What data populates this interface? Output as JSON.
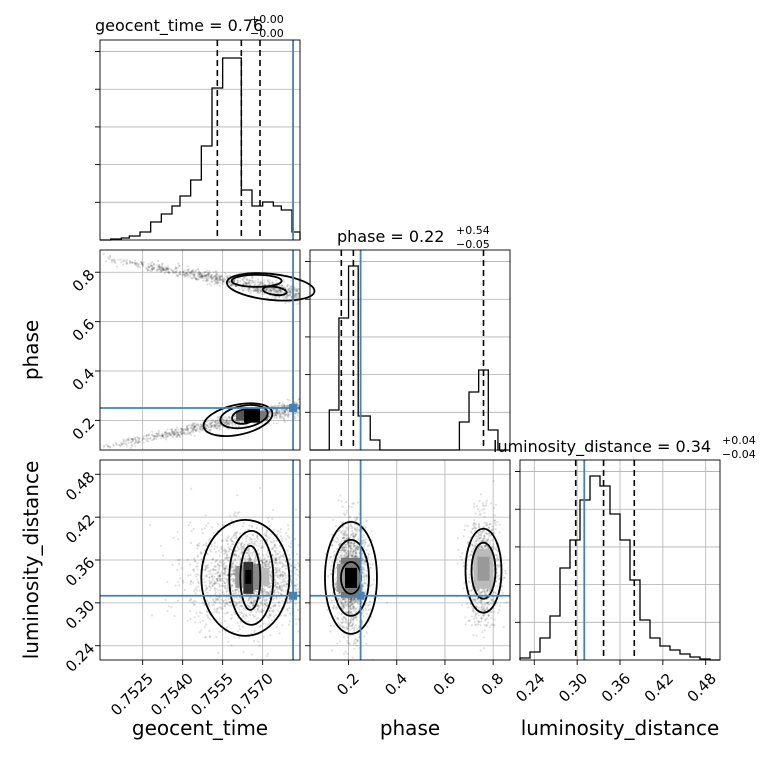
{
  "figure": {
    "type": "corner",
    "variables": [
      "geocent_time",
      "phase",
      "luminosity_distance"
    ],
    "truth_color": "#4682b4",
    "hist_color": "#000000"
  },
  "panel_titles": [
    {
      "name": "geocent_time",
      "text": "geocent_time = 0.76",
      "plus": "+0.00",
      "minus": "−0.00"
    },
    {
      "name": "phase",
      "text": "phase = 0.22",
      "plus": "+0.54",
      "minus": "−0.05"
    },
    {
      "name": "luminosity_distance",
      "text": "luminosity_distance = 0.34",
      "plus": "+0.04",
      "minus": "−0.04"
    }
  ],
  "axis_labels": {
    "x": [
      "geocent_time",
      "phase",
      "luminosity_distance"
    ],
    "y": [
      "phase",
      "luminosity_distance"
    ]
  },
  "chart_data": [
    {
      "type": "histogram",
      "variable": "geocent_time",
      "xlim": [
        0.7509,
        0.7584
      ],
      "ylim": [
        0,
        1.0
      ],
      "bin_edges": [
        0.7509,
        0.7513,
        0.7517,
        0.752,
        0.7524,
        0.7528,
        0.7532,
        0.7536,
        0.7539,
        0.7543,
        0.7547,
        0.7551,
        0.7555,
        0.7558,
        0.7562,
        0.7566,
        0.757,
        0.7574,
        0.7577,
        0.7581,
        0.7584
      ],
      "counts": [
        0.0,
        0.005,
        0.01,
        0.02,
        0.04,
        0.09,
        0.13,
        0.17,
        0.22,
        0.3,
        0.47,
        0.76,
        0.91,
        0.91,
        0.25,
        0.17,
        0.19,
        0.17,
        0.15,
        0.04
      ],
      "quantiles": [
        0.7553,
        0.7562,
        0.7569
      ],
      "truth": 0.75814,
      "xticks": [],
      "yticks_count": 5
    },
    {
      "type": "scatter_density",
      "x_variable": "geocent_time",
      "y_variable": "phase",
      "xlim": [
        0.7509,
        0.7584
      ],
      "ylim": [
        0.08,
        0.89
      ],
      "yticks": [
        0.2,
        0.4,
        0.6,
        0.8
      ],
      "truth": {
        "x": 0.75814,
        "y": 0.25
      },
      "modes": [
        {
          "x_range": [
            0.7509,
            0.7584
          ],
          "y_start": 0.86,
          "y_end": 0.71,
          "peak": {
            "x": 0.7566,
            "y": 0.78
          }
        },
        {
          "x_range": [
            0.7509,
            0.7584
          ],
          "y_start": 0.09,
          "y_end": 0.25,
          "peak": {
            "x": 0.7566,
            "y": 0.21
          }
        }
      ]
    },
    {
      "type": "histogram",
      "variable": "phase",
      "xlim": [
        0.04,
        0.87
      ],
      "ylim": [
        0,
        1.0
      ],
      "bin_edges": [
        0.04,
        0.08,
        0.12,
        0.16,
        0.2,
        0.24,
        0.29,
        0.33,
        0.37,
        0.41,
        0.45,
        0.49,
        0.54,
        0.58,
        0.62,
        0.66,
        0.7,
        0.74,
        0.78,
        0.82,
        0.87
      ],
      "counts": [
        0.0,
        0.0,
        0.2,
        0.66,
        0.92,
        0.17,
        0.05,
        0.0,
        0.0,
        0.0,
        0.0,
        0.0,
        0.0,
        0.0,
        0.0,
        0.14,
        0.29,
        0.4,
        0.1,
        0.0
      ],
      "quantiles": [
        0.17,
        0.22,
        0.76
      ],
      "truth": 0.25,
      "xticks": [],
      "yticks_count": 5
    },
    {
      "type": "scatter_density",
      "x_variable": "geocent_time",
      "y_variable": "luminosity_distance",
      "xlim": [
        0.7509,
        0.7584
      ],
      "ylim": [
        0.22,
        0.5
      ],
      "xticks": [
        0.7525,
        0.754,
        0.7555,
        0.757
      ],
      "xtick_labels": [
        "0.7525",
        "0.7540",
        "0.7555",
        "0.7570"
      ],
      "yticks": [
        0.24,
        0.3,
        0.36,
        0.42,
        0.48
      ],
      "ytick_labels": [
        "0.24",
        "0.30",
        "0.36",
        "0.42",
        "0.48"
      ],
      "truth": {
        "x": 0.75814,
        "y": 0.31
      },
      "peak": {
        "x": 0.7565,
        "y": 0.335
      }
    },
    {
      "type": "scatter_density",
      "x_variable": "phase",
      "y_variable": "luminosity_distance",
      "xlim": [
        0.04,
        0.87
      ],
      "ylim": [
        0.22,
        0.5
      ],
      "xticks": [
        0.2,
        0.4,
        0.6,
        0.8
      ],
      "xtick_labels": [
        "0.2",
        "0.4",
        "0.6",
        "0.8"
      ],
      "truth": {
        "x": 0.25,
        "y": 0.31
      },
      "modes": [
        {
          "x": 0.21,
          "y": 0.335
        },
        {
          "x": 0.76,
          "y": 0.345
        }
      ]
    },
    {
      "type": "histogram",
      "variable": "luminosity_distance",
      "xlim": [
        0.22,
        0.5
      ],
      "ylim": [
        0,
        1.0
      ],
      "bin_edges": [
        0.22,
        0.234,
        0.248,
        0.262,
        0.276,
        0.29,
        0.304,
        0.318,
        0.332,
        0.346,
        0.36,
        0.374,
        0.388,
        0.402,
        0.416,
        0.43,
        0.444,
        0.458,
        0.472,
        0.486,
        0.5
      ],
      "counts": [
        0.01,
        0.04,
        0.11,
        0.22,
        0.46,
        0.6,
        0.8,
        0.92,
        0.87,
        0.73,
        0.6,
        0.4,
        0.2,
        0.11,
        0.07,
        0.05,
        0.03,
        0.015,
        0.005,
        0.0
      ],
      "quantiles": [
        0.298,
        0.337,
        0.38
      ],
      "truth": 0.31,
      "xticks": [
        0.24,
        0.3,
        0.36,
        0.42,
        0.48
      ],
      "xtick_labels": [
        "0.24",
        "0.30",
        "0.36",
        "0.42",
        "0.48"
      ],
      "yticks_count": 5
    }
  ]
}
